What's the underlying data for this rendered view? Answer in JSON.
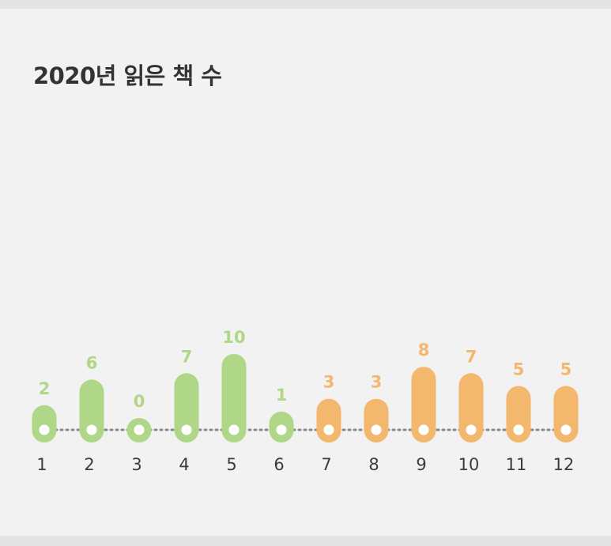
{
  "title": "2020년 읽은 책 수",
  "chart_data": {
    "type": "bar",
    "title": "2020년 읽은 책 수",
    "xlabel": "",
    "ylabel": "",
    "categories": [
      "1",
      "2",
      "3",
      "4",
      "5",
      "6",
      "7",
      "8",
      "9",
      "10",
      "11",
      "12"
    ],
    "values": [
      2,
      6,
      0,
      7,
      10,
      1,
      3,
      3,
      8,
      7,
      5,
      5
    ],
    "ylim": [
      0,
      10
    ],
    "grid": false,
    "bar_style": "rounded pill with white dot at base, dotted baseline",
    "colors": {
      "first_half": "#b0d788",
      "second_half": "#f3b86e",
      "baseline": "#8a8a8a",
      "dot": "#ffffff",
      "tick": "#3c3c3c"
    },
    "color_split_after_index": 5
  }
}
